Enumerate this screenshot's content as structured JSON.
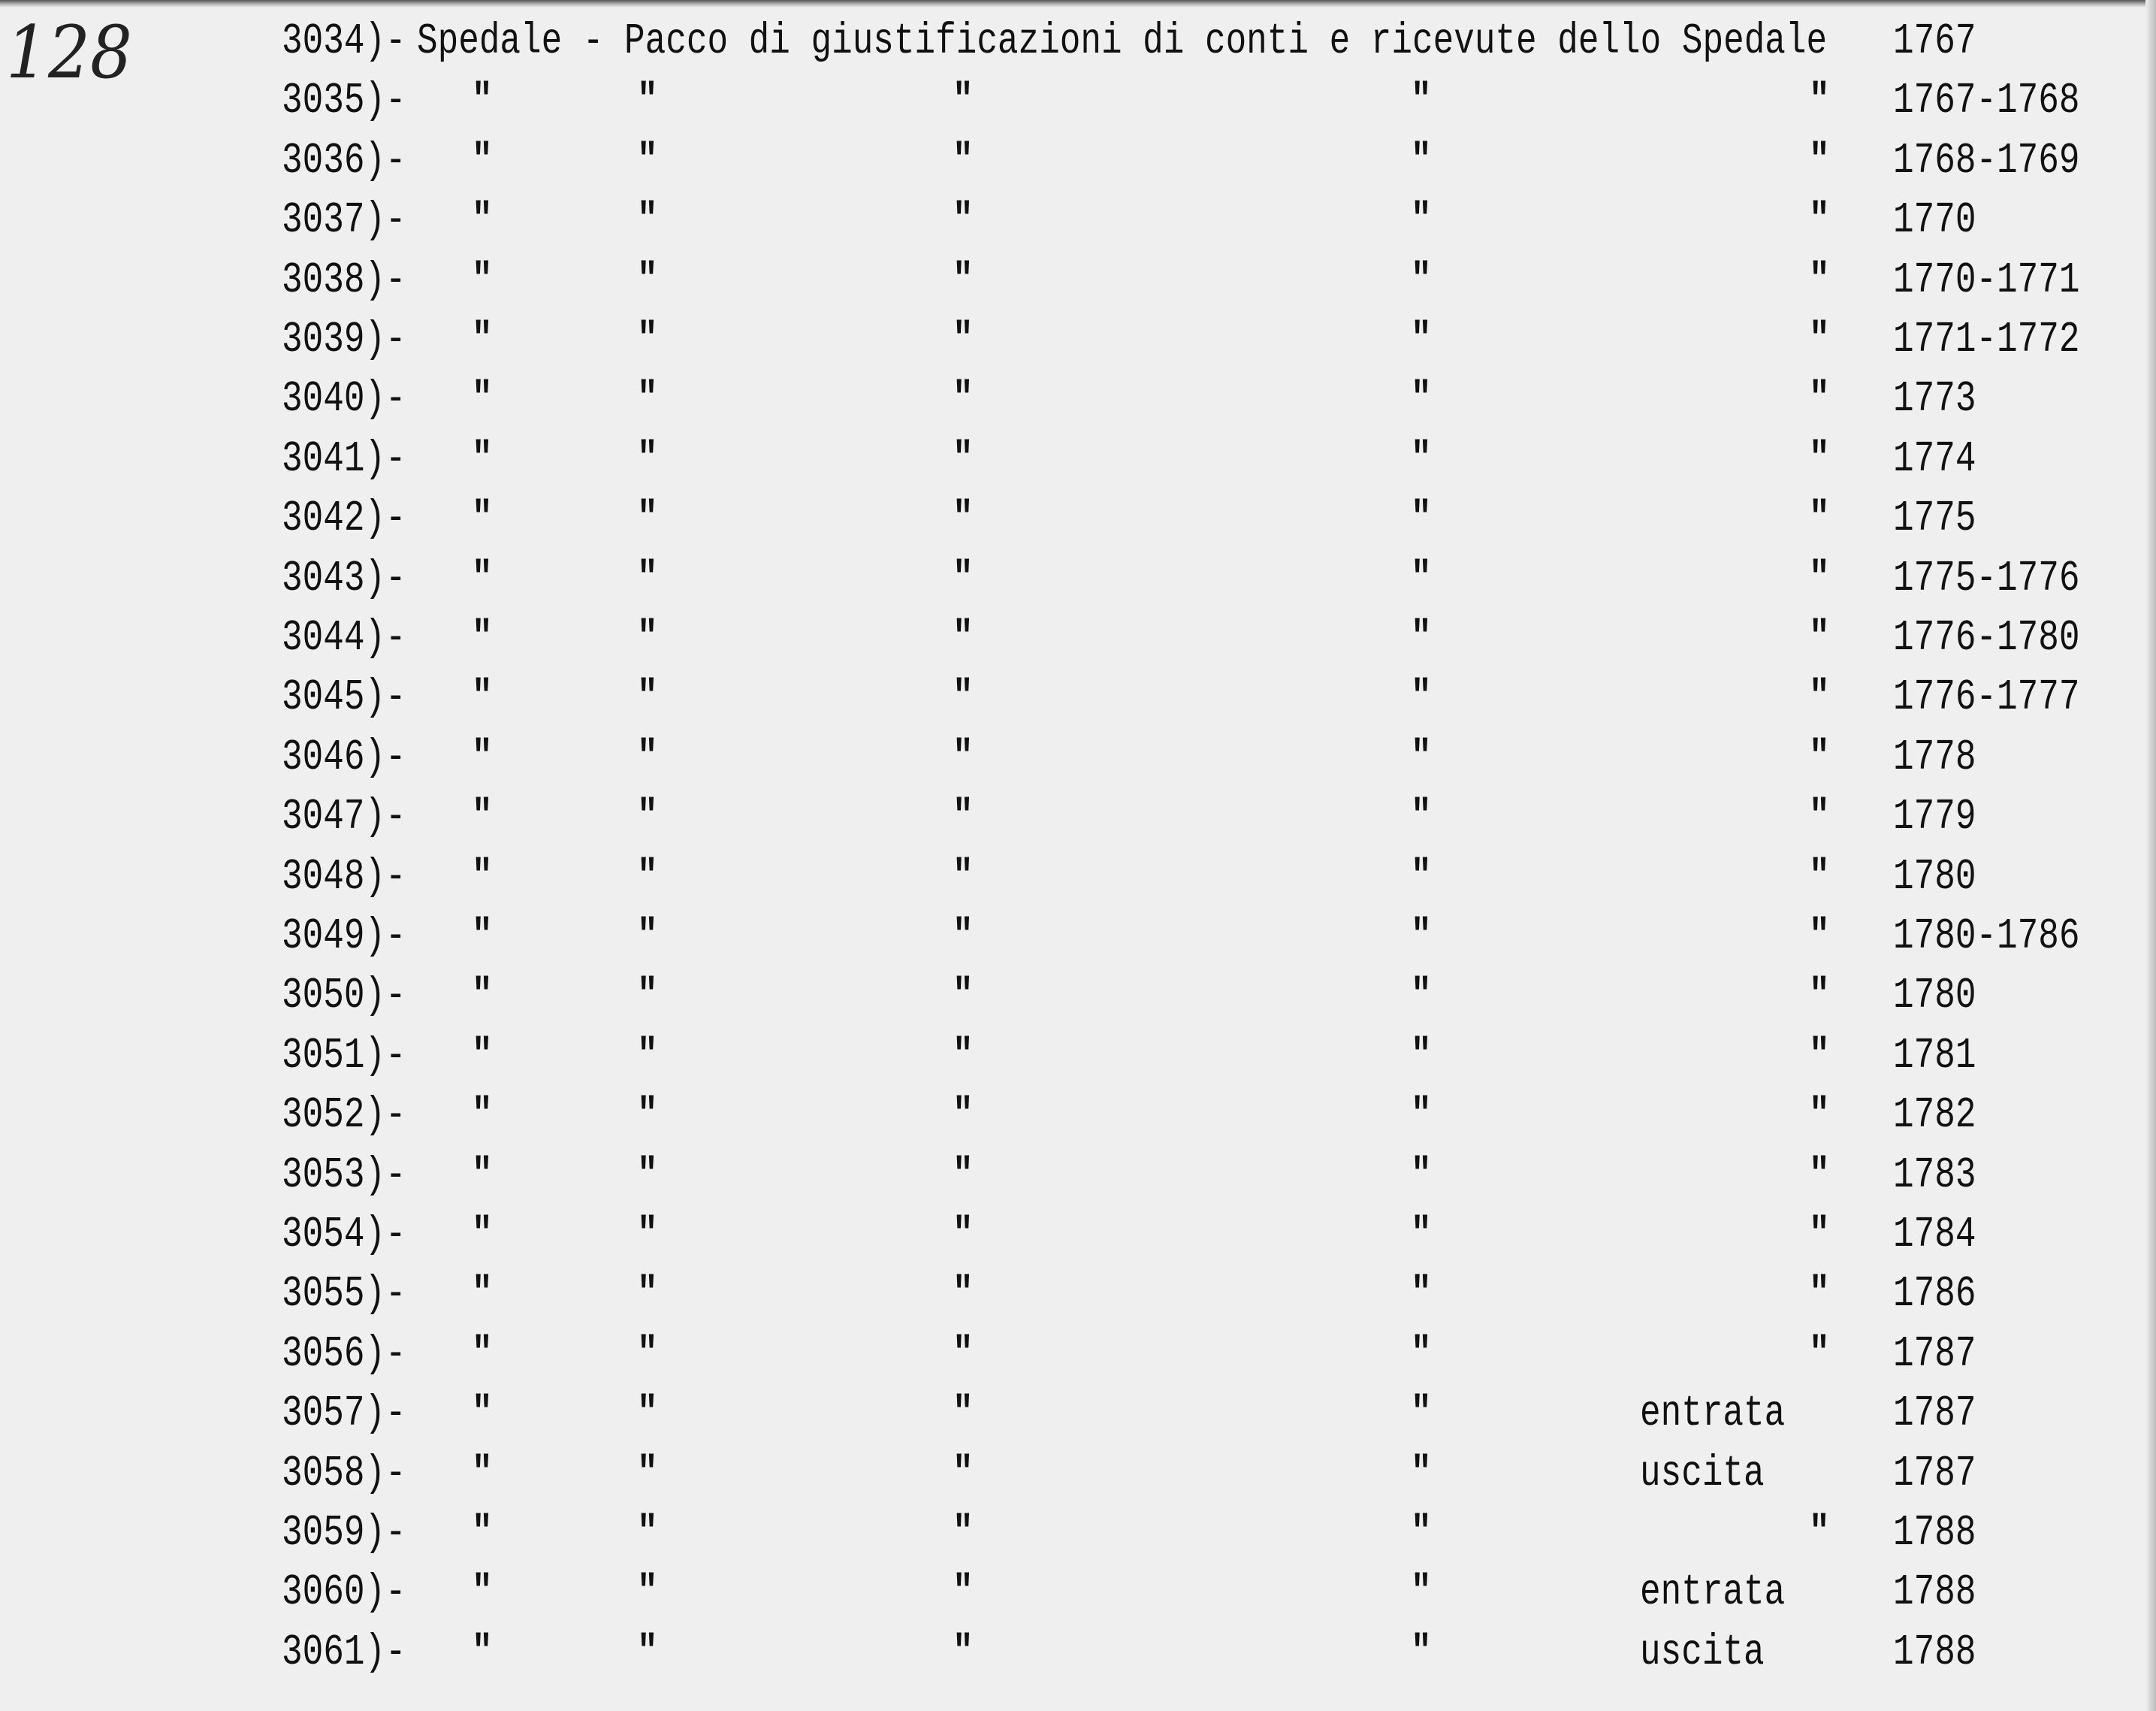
{
  "page_number": "128",
  "ditto": "\"",
  "rows": [
    {
      "num": "3034)-",
      "title": "Spedale - Pacco di giustificazioni di conti e ricevute dello Spedale",
      "years": "1767"
    },
    {
      "num": "3035)-",
      "dittos": 5,
      "years": "1767-1768"
    },
    {
      "num": "3036)-",
      "dittos": 5,
      "years": "1768-1769"
    },
    {
      "num": "3037)-",
      "dittos": 5,
      "years": "1770"
    },
    {
      "num": "3038)-",
      "dittos": 5,
      "years": "1770-1771"
    },
    {
      "num": "3039)-",
      "dittos": 5,
      "years": "1771-1772"
    },
    {
      "num": "3040)-",
      "dittos": 5,
      "years": "1773"
    },
    {
      "num": "3041)-",
      "dittos": 5,
      "years": "1774"
    },
    {
      "num": "3042)-",
      "dittos": 5,
      "years": "1775"
    },
    {
      "num": "3043)-",
      "dittos": 5,
      "years": "1775-1776"
    },
    {
      "num": "3044)-",
      "dittos": 5,
      "years": "1776-1780"
    },
    {
      "num": "3045)-",
      "dittos": 5,
      "years": "1776-1777"
    },
    {
      "num": "3046)-",
      "dittos": 5,
      "years": "1778"
    },
    {
      "num": "3047)-",
      "dittos": 5,
      "years": "1779"
    },
    {
      "num": "3048)-",
      "dittos": 5,
      "years": "1780"
    },
    {
      "num": "3049)-",
      "dittos": 5,
      "years": "1780-1786"
    },
    {
      "num": "3050)-",
      "dittos": 5,
      "years": "1780"
    },
    {
      "num": "3051)-",
      "dittos": 5,
      "years": "1781"
    },
    {
      "num": "3052)-",
      "dittos": 5,
      "years": "1782"
    },
    {
      "num": "3053)-",
      "dittos": 5,
      "years": "1783"
    },
    {
      "num": "3054)-",
      "dittos": 5,
      "years": "1784"
    },
    {
      "num": "3055)-",
      "dittos": 5,
      "years": "1786"
    },
    {
      "num": "3056)-",
      "dittos": 5,
      "years": "1787"
    },
    {
      "num": "3057)-",
      "dittos": 4,
      "note": "entrata",
      "years": "1787"
    },
    {
      "num": "3058)-",
      "dittos": 4,
      "note": "uscita",
      "years": "1787"
    },
    {
      "num": "3059)-",
      "dittos": 5,
      "years": "1788"
    },
    {
      "num": "3060)-",
      "dittos": 4,
      "note": "entrata",
      "years": "1788"
    },
    {
      "num": "3061)-",
      "dittos": 4,
      "note": "uscita",
      "years": "1788"
    }
  ]
}
